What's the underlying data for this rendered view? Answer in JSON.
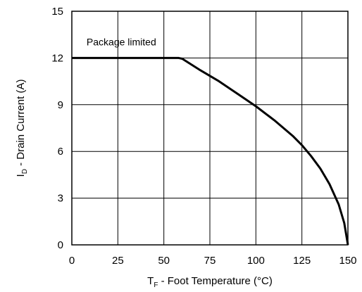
{
  "chart_data": {
    "type": "line",
    "xlabel": {
      "main": "T",
      "sub": "F",
      "rest": " - Foot Temperature (°C)"
    },
    "ylabel": {
      "main": "I",
      "sub": "D",
      "rest": " - Drain Current (A)"
    },
    "xlim": [
      0,
      150
    ],
    "ylim": [
      0,
      15
    ],
    "x_ticks": [
      "0",
      "25",
      "50",
      "75",
      "100",
      "125",
      "150"
    ],
    "y_ticks": [
      "0",
      "3",
      "6",
      "9",
      "12",
      "15"
    ],
    "grid": true,
    "annotations": [
      {
        "text": "Package limited",
        "x": 8,
        "y": 12.8
      }
    ],
    "series": [
      {
        "color": "#000000",
        "x": [
          0,
          58,
          60,
          70,
          80,
          90,
          100,
          110,
          120,
          125,
          130,
          135,
          140,
          145,
          148,
          150
        ],
        "y": [
          12,
          12,
          11.95,
          11.2,
          10.5,
          9.7,
          8.9,
          8.0,
          7.0,
          6.4,
          5.7,
          4.9,
          3.9,
          2.6,
          1.4,
          0
        ]
      }
    ]
  }
}
